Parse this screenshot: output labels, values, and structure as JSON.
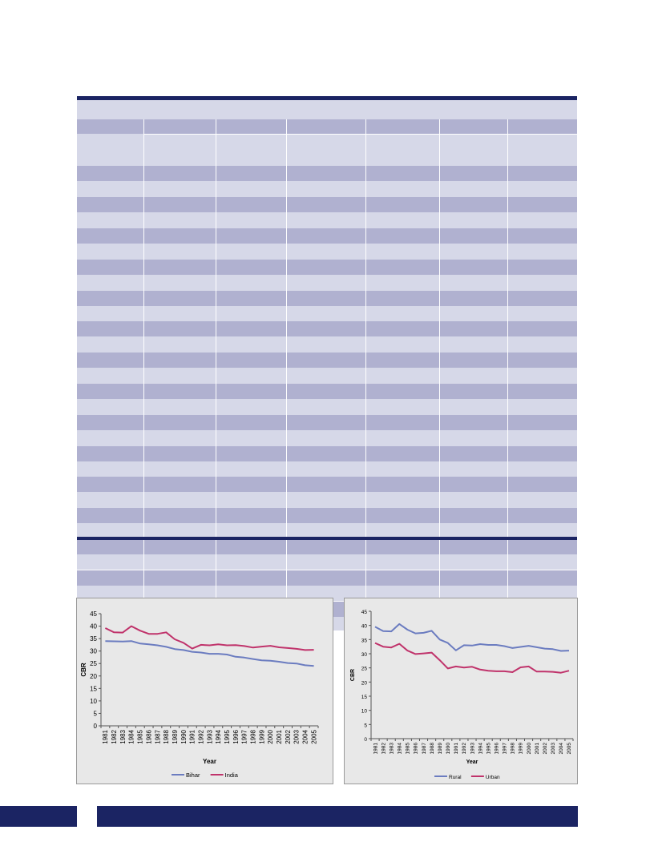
{
  "colors": {
    "navy": "#1b2463",
    "band_dark": "#b0b1d0",
    "band_light": "#d6d8e8",
    "series_blue": "#6b7cc0",
    "series_red": "#c0336b",
    "chart_bg": "#e8e8e8"
  },
  "chart_data": [
    {
      "type": "line",
      "title": "",
      "xlabel": "Year",
      "ylabel": "CBR",
      "ylim": [
        0,
        45
      ],
      "yticks": [
        0,
        5,
        10,
        15,
        20,
        25,
        30,
        35,
        40,
        45
      ],
      "categories": [
        "1981",
        "1982",
        "1983",
        "1984",
        "1985",
        "1986",
        "1987",
        "1988",
        "1989",
        "1990",
        "1991",
        "1992",
        "1993",
        "1994",
        "1995",
        "1996",
        "1997",
        "1998",
        "1999",
        "2000",
        "2001",
        "2002",
        "2003",
        "2004",
        "2005"
      ],
      "tick_labels": [
        "1981",
        "1982",
        "1983",
        "1984",
        "1985",
        "1986",
        "1987",
        "1988",
        "1989",
        "1990",
        "1991",
        "1992",
        "1993",
        "1994",
        "1995",
        "1996",
        "1997",
        "1998",
        "1999",
        "2000",
        "2001",
        "2002",
        "2003",
        "2004",
        "2005"
      ],
      "legend_position": "bottom",
      "series": [
        {
          "name": "Bihar",
          "color": "#6b7cc0",
          "values": [
            34.0,
            33.9,
            33.8,
            34.0,
            33.0,
            32.7,
            32.3,
            31.7,
            30.8,
            30.4,
            29.7,
            29.4,
            28.9,
            28.9,
            28.6,
            27.7,
            27.4,
            26.8,
            26.3,
            26.1,
            25.7,
            25.2,
            25.0,
            24.3,
            24.0
          ]
        },
        {
          "name": "India",
          "color": "#c0336b",
          "values": [
            39.2,
            37.5,
            37.4,
            40.0,
            38.2,
            36.9,
            36.9,
            37.5,
            34.7,
            33.3,
            31.0,
            32.5,
            32.3,
            32.7,
            32.3,
            32.4,
            32.0,
            31.4,
            31.8,
            32.1,
            31.5,
            31.2,
            30.9,
            30.4,
            30.5
          ]
        }
      ]
    },
    {
      "type": "line",
      "title": "",
      "xlabel": "Year",
      "ylabel": "CBR",
      "ylim": [
        0,
        45
      ],
      "yticks": [
        0,
        5,
        10,
        15,
        20,
        25,
        30,
        35,
        40,
        45
      ],
      "categories": [
        "1981",
        "1982",
        "1983",
        "1984",
        "1985",
        "1986",
        "1987",
        "1988",
        "1989",
        "1990",
        "1991",
        "1992",
        "1993",
        "1994",
        "1995",
        "1996",
        "1997",
        "1998",
        "1999",
        "2000",
        "2001",
        "2002",
        "2003",
        "2004",
        "2005"
      ],
      "tick_labels": [
        "1981",
        "1982",
        "1983",
        "1984",
        "1985",
        "1986",
        "1987",
        "1988",
        "1989",
        "1990",
        "1991",
        "1992",
        "1993",
        "1994",
        "1995",
        "1996",
        "1997",
        "1998",
        "1999",
        "2000",
        "2001",
        "2002",
        "2003",
        "2004",
        "2005"
      ],
      "legend_position": "bottom",
      "series": [
        {
          "name": "Rural",
          "color": "#6b7cc0",
          "values": [
            39.5,
            38.0,
            37.9,
            40.5,
            38.5,
            37.2,
            37.4,
            38.1,
            35.0,
            33.8,
            31.2,
            33.0,
            32.9,
            33.4,
            33.1,
            33.1,
            32.7,
            32.0,
            32.4,
            32.8,
            32.3,
            31.8,
            31.6,
            31.0,
            31.1
          ]
        },
        {
          "name": "Urban",
          "color": "#c0336b",
          "values": [
            33.8,
            32.5,
            32.2,
            33.5,
            31.1,
            29.9,
            30.1,
            30.4,
            27.7,
            24.8,
            25.5,
            25.1,
            25.4,
            24.4,
            24.0,
            23.8,
            23.8,
            23.5,
            25.2,
            25.5,
            23.7,
            23.7,
            23.6,
            23.3,
            24.0
          ]
        }
      ]
    }
  ]
}
